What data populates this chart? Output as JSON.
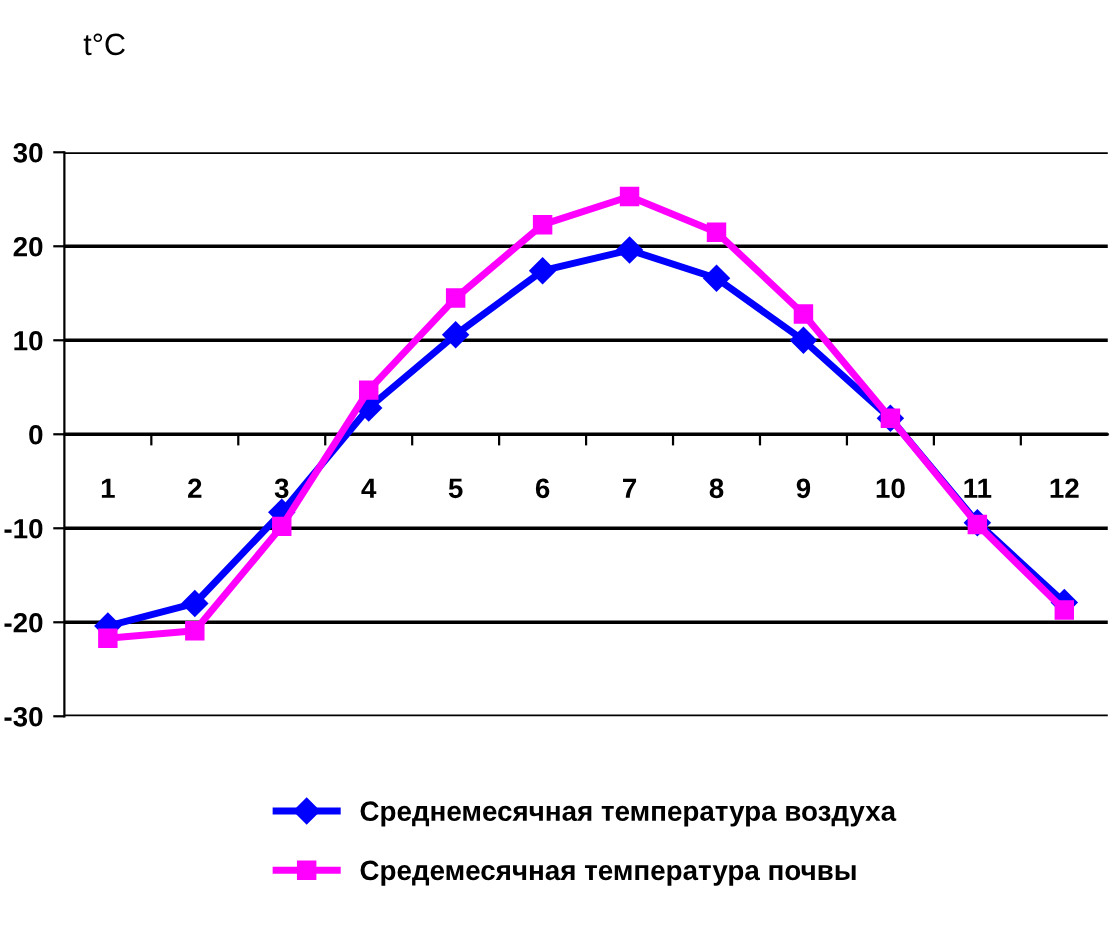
{
  "chart_data": {
    "type": "line",
    "ylabel": "t°C",
    "categories": [
      "1",
      "2",
      "3",
      "4",
      "5",
      "6",
      "7",
      "8",
      "9",
      "10",
      "11",
      "12"
    ],
    "series": [
      {
        "name": "Среднемесячная температура воздуха",
        "color": "#0000ff",
        "marker": "diamond",
        "values": [
          -20.4,
          -18,
          -8.3,
          2.8,
          10.6,
          17.4,
          19.6,
          16.6,
          10,
          1.7,
          -9.4,
          -17.9
        ]
      },
      {
        "name": "Средемесячная температура почвы",
        "color": "#ff00ff",
        "marker": "square",
        "values": [
          -21.7,
          -20.9,
          -9.8,
          4.7,
          14.5,
          22.3,
          25.3,
          21.5,
          12.8,
          1.7,
          -9.6,
          -18.7
        ]
      }
    ],
    "ylim": [
      -30,
      30
    ],
    "yticks": [
      -30,
      -20,
      -10,
      0,
      10,
      20,
      30
    ],
    "grid": "y",
    "legend": "bottom",
    "line_style": "solid"
  }
}
